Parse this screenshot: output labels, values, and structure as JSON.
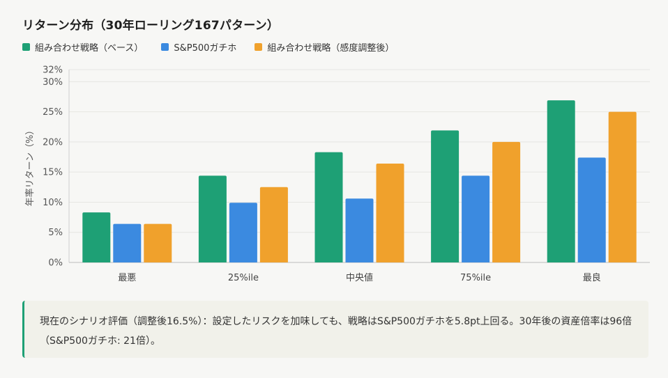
{
  "title": "リターン分布（30年ローリング167パターン）",
  "legend": [
    {
      "label": "組み合わせ戦略（ベース）",
      "color": "#1ea075"
    },
    {
      "label": "S&P500ガチホ",
      "color": "#3b8ae0"
    },
    {
      "label": "組み合わせ戦略（感度調整後）",
      "color": "#f0a12c"
    }
  ],
  "chart_data": {
    "type": "bar",
    "title": "リターン分布（30年ローリング167パターン）",
    "xlabel": "",
    "ylabel": "年率リターン（%）",
    "ylim": [
      0,
      32
    ],
    "yticks": [
      0,
      5,
      10,
      15,
      20,
      25,
      30,
      32
    ],
    "ytick_labels": [
      "0%",
      "5%",
      "10%",
      "15%",
      "20%",
      "25%",
      "30%",
      "32%"
    ],
    "grid": true,
    "legend_position": "top-left",
    "categories": [
      "最悪",
      "25%ile",
      "中央値",
      "75%ile",
      "最良"
    ],
    "series": [
      {
        "name": "組み合わせ戦略（ベース）",
        "color": "#1ea075",
        "values": [
          8.3,
          14.4,
          18.3,
          21.9,
          26.9
        ]
      },
      {
        "name": "S&P500ガチホ",
        "color": "#3b8ae0",
        "values": [
          6.4,
          9.9,
          10.6,
          14.4,
          17.4
        ]
      },
      {
        "name": "組み合わせ戦略（感度調整後）",
        "color": "#f0a12c",
        "values": [
          6.4,
          12.5,
          16.4,
          20.0,
          25.0
        ]
      }
    ]
  },
  "note": {
    "text": "現在のシナリオ評価（調整後16.5%）：設定したリスクを加味しても、戦略はS&P500ガチホを5.8pt上回る。30年後の資産倍率は96倍（S&P500ガチホ: 21倍）。"
  }
}
